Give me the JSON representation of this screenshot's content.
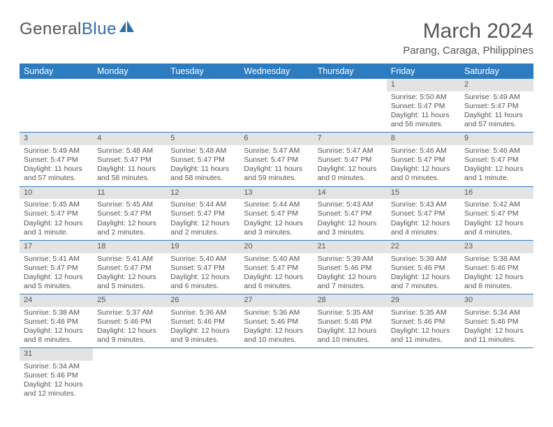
{
  "logo": {
    "part1": "General",
    "part2": "Blue"
  },
  "title": "March 2024",
  "subtitle": "Parang, Caraga, Philippines",
  "colors": {
    "header_bg": "#2e7cc0",
    "header_text": "#ffffff",
    "daynum_bg": "#e3e3e3",
    "text": "#555555",
    "rule": "#2e7cc0",
    "logo_accent": "#2e6ca8"
  },
  "fonts": {
    "title_size": 30,
    "subtitle_size": 15,
    "header_size": 12.5,
    "cell_size": 10.5
  },
  "dayHeaders": [
    "Sunday",
    "Monday",
    "Tuesday",
    "Wednesday",
    "Thursday",
    "Friday",
    "Saturday"
  ],
  "weeks": [
    [
      null,
      null,
      null,
      null,
      null,
      {
        "n": "1",
        "sunrise": "Sunrise: 5:50 AM",
        "sunset": "Sunset: 5:47 PM",
        "daylight": "Daylight: 11 hours and 56 minutes."
      },
      {
        "n": "2",
        "sunrise": "Sunrise: 5:49 AM",
        "sunset": "Sunset: 5:47 PM",
        "daylight": "Daylight: 11 hours and 57 minutes."
      }
    ],
    [
      {
        "n": "3",
        "sunrise": "Sunrise: 5:49 AM",
        "sunset": "Sunset: 5:47 PM",
        "daylight": "Daylight: 11 hours and 57 minutes."
      },
      {
        "n": "4",
        "sunrise": "Sunrise: 5:48 AM",
        "sunset": "Sunset: 5:47 PM",
        "daylight": "Daylight: 11 hours and 58 minutes."
      },
      {
        "n": "5",
        "sunrise": "Sunrise: 5:48 AM",
        "sunset": "Sunset: 5:47 PM",
        "daylight": "Daylight: 11 hours and 58 minutes."
      },
      {
        "n": "6",
        "sunrise": "Sunrise: 5:47 AM",
        "sunset": "Sunset: 5:47 PM",
        "daylight": "Daylight: 11 hours and 59 minutes."
      },
      {
        "n": "7",
        "sunrise": "Sunrise: 5:47 AM",
        "sunset": "Sunset: 5:47 PM",
        "daylight": "Daylight: 12 hours and 0 minutes."
      },
      {
        "n": "8",
        "sunrise": "Sunrise: 5:46 AM",
        "sunset": "Sunset: 5:47 PM",
        "daylight": "Daylight: 12 hours and 0 minutes."
      },
      {
        "n": "9",
        "sunrise": "Sunrise: 5:46 AM",
        "sunset": "Sunset: 5:47 PM",
        "daylight": "Daylight: 12 hours and 1 minute."
      }
    ],
    [
      {
        "n": "10",
        "sunrise": "Sunrise: 5:45 AM",
        "sunset": "Sunset: 5:47 PM",
        "daylight": "Daylight: 12 hours and 1 minute."
      },
      {
        "n": "11",
        "sunrise": "Sunrise: 5:45 AM",
        "sunset": "Sunset: 5:47 PM",
        "daylight": "Daylight: 12 hours and 2 minutes."
      },
      {
        "n": "12",
        "sunrise": "Sunrise: 5:44 AM",
        "sunset": "Sunset: 5:47 PM",
        "daylight": "Daylight: 12 hours and 2 minutes."
      },
      {
        "n": "13",
        "sunrise": "Sunrise: 5:44 AM",
        "sunset": "Sunset: 5:47 PM",
        "daylight": "Daylight: 12 hours and 3 minutes."
      },
      {
        "n": "14",
        "sunrise": "Sunrise: 5:43 AM",
        "sunset": "Sunset: 5:47 PM",
        "daylight": "Daylight: 12 hours and 3 minutes."
      },
      {
        "n": "15",
        "sunrise": "Sunrise: 5:43 AM",
        "sunset": "Sunset: 5:47 PM",
        "daylight": "Daylight: 12 hours and 4 minutes."
      },
      {
        "n": "16",
        "sunrise": "Sunrise: 5:42 AM",
        "sunset": "Sunset: 5:47 PM",
        "daylight": "Daylight: 12 hours and 4 minutes."
      }
    ],
    [
      {
        "n": "17",
        "sunrise": "Sunrise: 5:41 AM",
        "sunset": "Sunset: 5:47 PM",
        "daylight": "Daylight: 12 hours and 5 minutes."
      },
      {
        "n": "18",
        "sunrise": "Sunrise: 5:41 AM",
        "sunset": "Sunset: 5:47 PM",
        "daylight": "Daylight: 12 hours and 5 minutes."
      },
      {
        "n": "19",
        "sunrise": "Sunrise: 5:40 AM",
        "sunset": "Sunset: 5:47 PM",
        "daylight": "Daylight: 12 hours and 6 minutes."
      },
      {
        "n": "20",
        "sunrise": "Sunrise: 5:40 AM",
        "sunset": "Sunset: 5:47 PM",
        "daylight": "Daylight: 12 hours and 6 minutes."
      },
      {
        "n": "21",
        "sunrise": "Sunrise: 5:39 AM",
        "sunset": "Sunset: 5:46 PM",
        "daylight": "Daylight: 12 hours and 7 minutes."
      },
      {
        "n": "22",
        "sunrise": "Sunrise: 5:39 AM",
        "sunset": "Sunset: 5:46 PM",
        "daylight": "Daylight: 12 hours and 7 minutes."
      },
      {
        "n": "23",
        "sunrise": "Sunrise: 5:38 AM",
        "sunset": "Sunset: 5:46 PM",
        "daylight": "Daylight: 12 hours and 8 minutes."
      }
    ],
    [
      {
        "n": "24",
        "sunrise": "Sunrise: 5:38 AM",
        "sunset": "Sunset: 5:46 PM",
        "daylight": "Daylight: 12 hours and 8 minutes."
      },
      {
        "n": "25",
        "sunrise": "Sunrise: 5:37 AM",
        "sunset": "Sunset: 5:46 PM",
        "daylight": "Daylight: 12 hours and 9 minutes."
      },
      {
        "n": "26",
        "sunrise": "Sunrise: 5:36 AM",
        "sunset": "Sunset: 5:46 PM",
        "daylight": "Daylight: 12 hours and 9 minutes."
      },
      {
        "n": "27",
        "sunrise": "Sunrise: 5:36 AM",
        "sunset": "Sunset: 5:46 PM",
        "daylight": "Daylight: 12 hours and 10 minutes."
      },
      {
        "n": "28",
        "sunrise": "Sunrise: 5:35 AM",
        "sunset": "Sunset: 5:46 PM",
        "daylight": "Daylight: 12 hours and 10 minutes."
      },
      {
        "n": "29",
        "sunrise": "Sunrise: 5:35 AM",
        "sunset": "Sunset: 5:46 PM",
        "daylight": "Daylight: 12 hours and 11 minutes."
      },
      {
        "n": "30",
        "sunrise": "Sunrise: 5:34 AM",
        "sunset": "Sunset: 5:46 PM",
        "daylight": "Daylight: 12 hours and 11 minutes."
      }
    ],
    [
      {
        "n": "31",
        "sunrise": "Sunrise: 5:34 AM",
        "sunset": "Sunset: 5:46 PM",
        "daylight": "Daylight: 12 hours and 12 minutes."
      },
      null,
      null,
      null,
      null,
      null,
      null
    ]
  ]
}
